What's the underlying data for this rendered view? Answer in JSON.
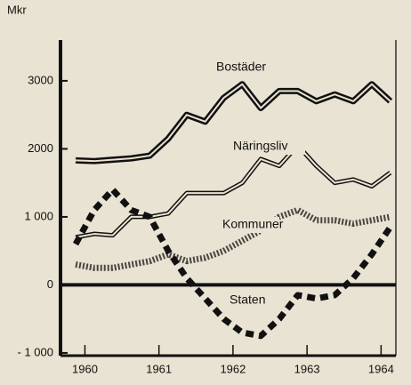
{
  "chart_data": {
    "type": "line",
    "ylabel": "Mkr",
    "x": [
      1959.875,
      1960.125,
      1960.375,
      1960.625,
      1960.875,
      1961.125,
      1961.375,
      1961.625,
      1961.875,
      1962.125,
      1962.375,
      1962.625,
      1962.875,
      1963.125,
      1963.375,
      1963.625,
      1963.875,
      1964.125
    ],
    "series": [
      {
        "name": "Bostäder",
        "color": "#111111",
        "values": [
          1830,
          1820,
          1840,
          1860,
          1900,
          2150,
          2500,
          2400,
          2750,
          2950,
          2600,
          2850,
          2850,
          2700,
          2800,
          2700,
          2950,
          2700
        ]
      },
      {
        "name": "Näringsliv",
        "color": "#111111",
        "values": [
          700,
          750,
          730,
          1000,
          1000,
          1050,
          1350,
          1350,
          1350,
          1500,
          1850,
          1750,
          2050,
          1750,
          1500,
          1550,
          1450,
          1650
        ]
      },
      {
        "name": "Kommuner",
        "color": "#4a4540",
        "values": [
          300,
          250,
          250,
          300,
          350,
          450,
          350,
          400,
          500,
          650,
          800,
          1000,
          1100,
          950,
          950,
          900,
          950,
          1000
        ]
      },
      {
        "name": "Staten",
        "color": "#111111",
        "values": [
          600,
          1100,
          1400,
          1100,
          1000,
          500,
          100,
          -200,
          -500,
          -700,
          -750,
          -500,
          -150,
          -200,
          -150,
          100,
          450,
          850
        ]
      }
    ],
    "xlim": [
      1959.67,
      1964.2
    ],
    "ylim": [
      -1040,
      3600
    ],
    "xticks": [
      1960,
      1961,
      1962,
      1963,
      1964
    ],
    "yticks": [
      {
        "value": -1000,
        "label": "- 1 000"
      },
      0,
      {
        "value": 1000,
        "label": "1 000"
      },
      2000,
      3000
    ]
  }
}
